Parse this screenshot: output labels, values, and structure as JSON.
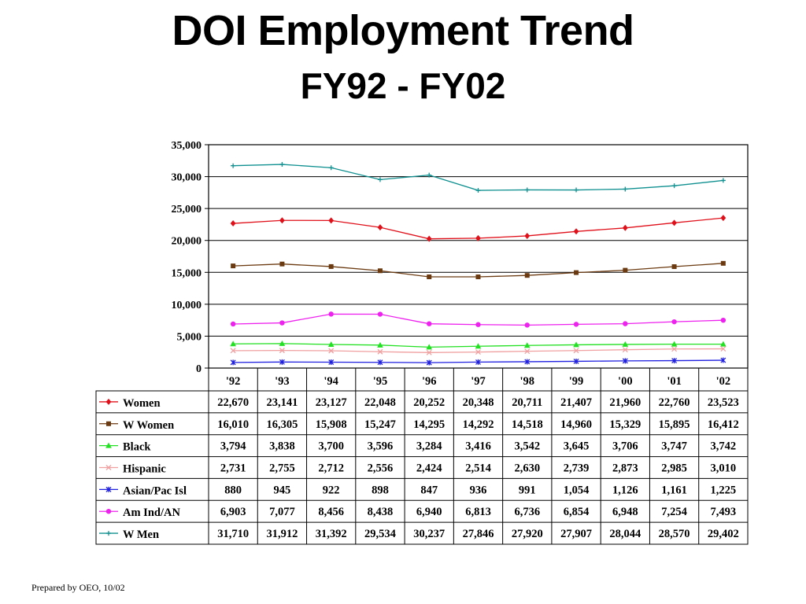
{
  "header": {
    "title": "DOI Employment Trend",
    "subtitle": "FY92 - FY02"
  },
  "footer": {
    "text": "Prepared by OEO, 10/02"
  },
  "chart_data": {
    "type": "line",
    "title": "DOI Employment Trend",
    "subtitle": "FY92 - FY02",
    "xlabel": "",
    "ylabel": "",
    "categories": [
      "'92",
      "'93",
      "'94",
      "'95",
      "'96",
      "'97",
      "'98",
      "'99",
      "'00",
      "'01",
      "'02"
    ],
    "ylim": [
      0,
      35000
    ],
    "yticks": [
      0,
      5000,
      10000,
      15000,
      20000,
      25000,
      30000,
      35000
    ],
    "ytick_labels": [
      "0",
      "5,000",
      "10,000",
      "15,000",
      "20,000",
      "25,000",
      "30,000",
      "35,000"
    ],
    "grid": true,
    "legend": "data-table-left",
    "series": [
      {
        "name": "Women",
        "color": "#e0101a",
        "marker": "diamond",
        "values": [
          22670,
          23141,
          23127,
          22048,
          20252,
          20348,
          20711,
          21407,
          21960,
          22760,
          23523
        ],
        "labels": [
          "22,670",
          "23,141",
          "23,127",
          "22,048",
          "20,252",
          "20,348",
          "20,711",
          "21,407",
          "21,960",
          "22,760",
          "23,523"
        ]
      },
      {
        "name": "W Women",
        "color": "#6b3a10",
        "marker": "square",
        "values": [
          16010,
          16305,
          15908,
          15247,
          14295,
          14292,
          14518,
          14960,
          15329,
          15895,
          16412
        ],
        "labels": [
          "16,010",
          "16,305",
          "15,908",
          "15,247",
          "14,295",
          "14,292",
          "14,518",
          "14,960",
          "15,329",
          "15,895",
          "16,412"
        ]
      },
      {
        "name": "Black",
        "color": "#22e022",
        "marker": "triangle",
        "values": [
          3794,
          3838,
          3700,
          3596,
          3284,
          3416,
          3542,
          3645,
          3706,
          3747,
          3742
        ],
        "labels": [
          "3,794",
          "3,838",
          "3,700",
          "3,596",
          "3,284",
          "3,416",
          "3,542",
          "3,645",
          "3,706",
          "3,747",
          "3,742"
        ]
      },
      {
        "name": "Hispanic",
        "color": "#f0a0a0",
        "marker": "x",
        "values": [
          2731,
          2755,
          2712,
          2556,
          2424,
          2514,
          2630,
          2739,
          2873,
          2985,
          3010
        ],
        "labels": [
          "2,731",
          "2,755",
          "2,712",
          "2,556",
          "2,424",
          "2,514",
          "2,630",
          "2,739",
          "2,873",
          "2,985",
          "3,010"
        ]
      },
      {
        "name": "Asian/Pac Isl",
        "color": "#2020e0",
        "marker": "star",
        "values": [
          880,
          945,
          922,
          898,
          847,
          936,
          991,
          1054,
          1126,
          1161,
          1225
        ],
        "labels": [
          "880",
          "945",
          "922",
          "898",
          "847",
          "936",
          "991",
          "1,054",
          "1,126",
          "1,161",
          "1,225"
        ]
      },
      {
        "name": "Am Ind/AN",
        "color": "#ee22ee",
        "marker": "circle",
        "values": [
          6903,
          7077,
          8456,
          8438,
          6940,
          6813,
          6736,
          6854,
          6948,
          7254,
          7493
        ],
        "labels": [
          "6,903",
          "7,077",
          "8,456",
          "8,438",
          "6,940",
          "6,813",
          "6,736",
          "6,854",
          "6,948",
          "7,254",
          "7,493"
        ]
      },
      {
        "name": "W Men",
        "color": "#109090",
        "marker": "plus",
        "values": [
          31710,
          31912,
          31392,
          29534,
          30237,
          27846,
          27920,
          27907,
          28044,
          28570,
          29402
        ],
        "labels": [
          "31,710",
          "31,912",
          "31,392",
          "29,534",
          "30,237",
          "27,846",
          "27,920",
          "27,907",
          "28,044",
          "28,570",
          "29,402"
        ]
      }
    ]
  }
}
